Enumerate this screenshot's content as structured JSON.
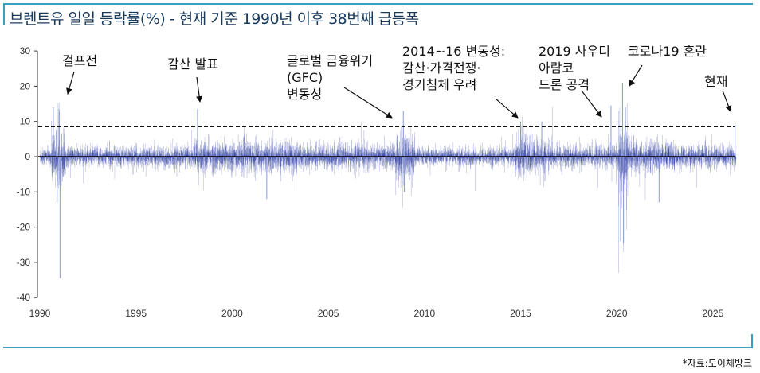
{
  "title": "브렌트유 일일 등락률(%) - 현재 기준 1990년 이후 38번째 급등폭",
  "source": "*자료:도이체방크",
  "chart_data": {
    "type": "bar",
    "title": "브렌트유 일일 등락률(%) - 현재 기준 1990년 이후 38번째 급등폭",
    "xlabel": "",
    "ylabel": "",
    "xlim": [
      1990,
      2026.2
    ],
    "ylim": [
      -40,
      30
    ],
    "yticks": [
      "30",
      "20",
      "10",
      "0",
      "-10",
      "-20",
      "-30",
      "-40"
    ],
    "ytick_values": [
      30,
      20,
      10,
      0,
      -10,
      -20,
      -30,
      -40
    ],
    "xticks": [
      "1990",
      "1995",
      "2000",
      "2005",
      "2010",
      "2015",
      "2020",
      "2025"
    ],
    "xtick_values": [
      1990,
      1995,
      2000,
      2005,
      2010,
      2015,
      2020,
      2025
    ],
    "threshold_line": 8.5,
    "series_color": "#1a2a9c",
    "volatility_regimes": [
      {
        "from": 1990,
        "to": 1990.6,
        "sd": 1.3
      },
      {
        "from": 1990.6,
        "to": 1991.3,
        "sd": 4.0
      },
      {
        "from": 1991.3,
        "to": 1998,
        "sd": 1.5
      },
      {
        "from": 1998,
        "to": 2003.5,
        "sd": 2.3
      },
      {
        "from": 2003.5,
        "to": 2008.5,
        "sd": 1.8
      },
      {
        "from": 2008.5,
        "to": 2009.5,
        "sd": 3.8
      },
      {
        "from": 2009.5,
        "to": 2014.7,
        "sd": 1.3
      },
      {
        "from": 2014.7,
        "to": 2016.3,
        "sd": 2.8
      },
      {
        "from": 2016.3,
        "to": 2020.1,
        "sd": 1.7
      },
      {
        "from": 2020.1,
        "to": 2020.6,
        "sd": 5.5
      },
      {
        "from": 2020.6,
        "to": 2023,
        "sd": 2.3
      },
      {
        "from": 2023,
        "to": 2026.2,
        "sd": 1.6
      }
    ],
    "notable_moves": [
      {
        "x": 1990.7,
        "y": 14
      },
      {
        "x": 1991.05,
        "y": -34.5
      },
      {
        "x": 1991.0,
        "y": 13.5
      },
      {
        "x": 1990.9,
        "y": -13
      },
      {
        "x": 1998.2,
        "y": 13.5
      },
      {
        "x": 2001.8,
        "y": -12
      },
      {
        "x": 2008.9,
        "y": 13
      },
      {
        "x": 2008.95,
        "y": -10
      },
      {
        "x": 2015.0,
        "y": 10
      },
      {
        "x": 2016.1,
        "y": 10
      },
      {
        "x": 2019.7,
        "y": 14.5
      },
      {
        "x": 2020.2,
        "y": -24
      },
      {
        "x": 2020.3,
        "y": 21
      },
      {
        "x": 2020.35,
        "y": -24.5
      },
      {
        "x": 2020.45,
        "y": 14
      },
      {
        "x": 2022.2,
        "y": -13
      },
      {
        "x": 2026.15,
        "y": 9
      }
    ],
    "annotations": [
      {
        "lines": [
          "걸프전"
        ]
      },
      {
        "lines": [
          "감산 발표"
        ]
      },
      {
        "lines": [
          "글로벌 금융위기",
          "(GFC)",
          "변동성"
        ]
      },
      {
        "lines": [
          "2014~16 변동성:",
          "감산·가격전쟁·",
          "경기침체 우려"
        ]
      },
      {
        "lines": [
          "2019 사우디",
          "아람코",
          "드론 공격"
        ]
      },
      {
        "lines": [
          "코로나19 혼란"
        ]
      },
      {
        "lines": [
          "현재"
        ]
      }
    ]
  }
}
